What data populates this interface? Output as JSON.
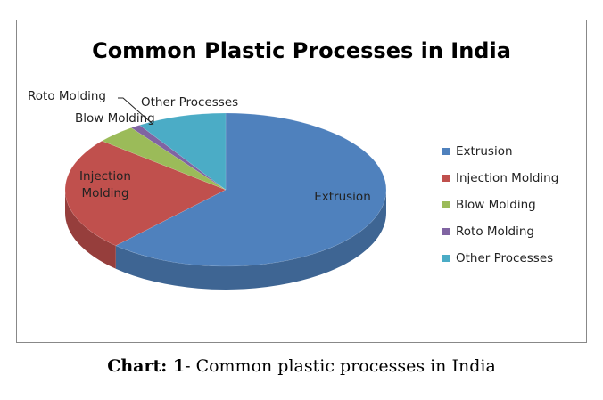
{
  "chart_data": {
    "type": "pie3d",
    "title": "Common Plastic Processes in India",
    "categories": [
      "Extrusion",
      "Injection Molding",
      "Blow Molding",
      "Roto Molding",
      "Other Processes"
    ],
    "values": [
      62,
      24,
      4,
      1,
      9
    ],
    "colors": [
      "#4f81bd",
      "#c0504d",
      "#9bbb59",
      "#8064a2",
      "#4bacc6"
    ],
    "legend": "right"
  },
  "caption": {
    "label": "Chart: 1",
    "text": "- Common plastic processes in India"
  }
}
